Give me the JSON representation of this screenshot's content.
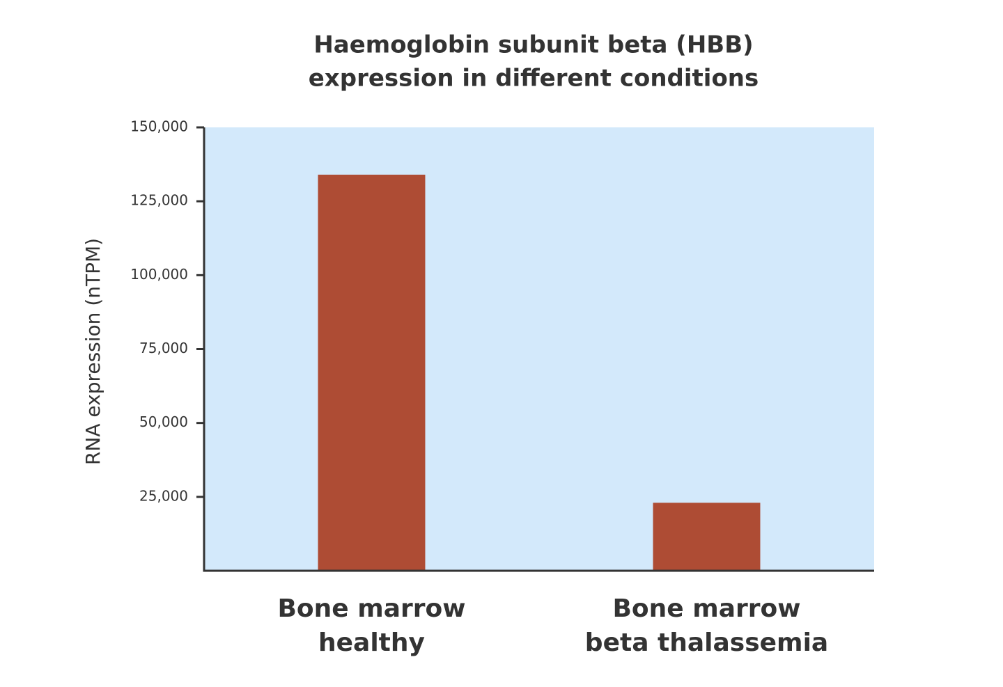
{
  "chart_data": {
    "type": "bar",
    "title": [
      "Haemoglobin subunit beta (HBB)",
      "expression in different conditions"
    ],
    "y_label": "RNA expression (nTPM)",
    "categories": [
      [
        "Bone marrow",
        "healthy"
      ],
      [
        "Bone marrow",
        "beta thalassemia"
      ]
    ],
    "values": [
      134000,
      23000
    ],
    "color": "#ae4c34",
    "background": "#d3e9fb",
    "ylim": [
      0,
      150000
    ],
    "yticks": [
      {
        "value": 25000,
        "label": "25,000"
      },
      {
        "value": 50000,
        "label": "50,000"
      },
      {
        "value": 75000,
        "label": "75,000"
      },
      {
        "value": 100000,
        "label": "100,000"
      },
      {
        "value": 125000,
        "label": "125,000"
      },
      {
        "value": 150000,
        "label": "150,000"
      }
    ],
    "grid": false
  }
}
